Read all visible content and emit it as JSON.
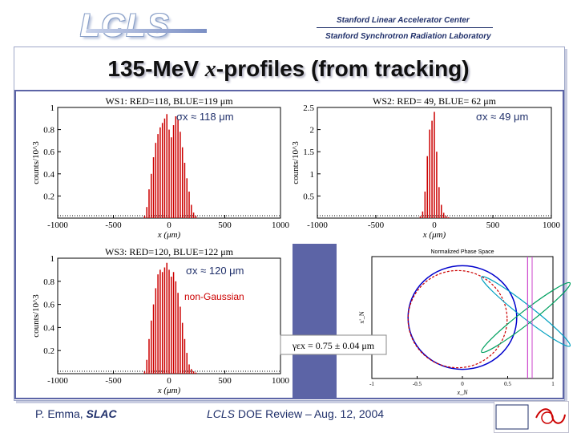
{
  "header": {
    "logo": "LCLS",
    "org_line1": "Stanford Linear Accelerator Center",
    "org_line2": "Stanford Synchrotron Radiation Laboratory"
  },
  "slide_title": {
    "prefix": "135-MeV ",
    "var": "x",
    "suffix": "-profiles (from tracking)"
  },
  "footer": {
    "author": "P. Emma, ",
    "affil": "SLAC",
    "event_prefix": "LCLS",
    "event_suffix": " DOE Review – Aug. 12, 2004"
  },
  "colors": {
    "red": "#cc0000",
    "blue": "#0000cc",
    "band": "#5c64a6",
    "annot": "#1f2f6a"
  },
  "chart_data": [
    {
      "type": "bar",
      "title": "WS1: RED=118, BLUE=119 μm",
      "xlabel": "x (μm)",
      "ylabel": "counts/10^3",
      "xlim": [
        -1000,
        1000
      ],
      "ylim": [
        0,
        1
      ],
      "xticks": [
        -1000,
        -500,
        0,
        500,
        1000
      ],
      "yticks": [
        0.2,
        0.4,
        0.6,
        0.8,
        1
      ],
      "annotation": "σx ≈ 118 μm",
      "x": [
        -220,
        -200,
        -180,
        -160,
        -140,
        -120,
        -100,
        -80,
        -60,
        -40,
        -20,
        0,
        20,
        40,
        60,
        80,
        100,
        120,
        140,
        160,
        180,
        200,
        220,
        240
      ],
      "values": [
        0.02,
        0.1,
        0.26,
        0.4,
        0.55,
        0.68,
        0.76,
        0.82,
        0.86,
        0.9,
        0.94,
        0.8,
        0.73,
        0.84,
        0.92,
        0.89,
        0.78,
        0.64,
        0.5,
        0.36,
        0.24,
        0.12,
        0.05,
        0.02
      ]
    },
    {
      "type": "bar",
      "title": "WS2: RED= 49, BLUE= 62 μm",
      "xlabel": "x (μm)",
      "ylabel": "counts/10^3",
      "xlim": [
        -1000,
        1000
      ],
      "ylim": [
        0,
        2.5
      ],
      "xticks": [
        -1000,
        -500,
        0,
        500,
        1000
      ],
      "yticks": [
        0.5,
        1,
        1.5,
        2,
        2.5
      ],
      "annotation": "σx ≈ 49 μm",
      "x": [
        -120,
        -100,
        -80,
        -60,
        -40,
        -20,
        0,
        20,
        40,
        60,
        80,
        100,
        120
      ],
      "values": [
        0.04,
        0.15,
        0.6,
        1.4,
        2.0,
        2.2,
        2.4,
        1.5,
        0.7,
        0.3,
        0.12,
        0.05,
        0.02
      ]
    },
    {
      "type": "bar",
      "title": "WS3: RED=120, BLUE=122 μm",
      "xlabel": "x (μm)",
      "ylabel": "counts/10^3",
      "xlim": [
        -1000,
        1000
      ],
      "ylim": [
        0,
        1
      ],
      "xticks": [
        -1000,
        -500,
        0,
        500,
        1000
      ],
      "yticks": [
        0.2,
        0.4,
        0.6,
        0.8,
        1
      ],
      "annotation": "σx ≈ 120 μm",
      "annotation2": "non-Gaussian",
      "x": [
        -220,
        -200,
        -180,
        -160,
        -140,
        -120,
        -100,
        -80,
        -60,
        -40,
        -20,
        0,
        20,
        40,
        60,
        80,
        100,
        120,
        140,
        160,
        180,
        200,
        220,
        240
      ],
      "values": [
        0.02,
        0.12,
        0.3,
        0.46,
        0.6,
        0.74,
        0.86,
        0.9,
        0.88,
        0.92,
        0.96,
        0.9,
        0.84,
        0.88,
        0.8,
        0.7,
        0.58,
        0.44,
        0.3,
        0.18,
        0.08,
        0.04,
        0.02,
        0.01
      ]
    },
    {
      "type": "scatter",
      "title": "Normalized Phase Space",
      "xlabel": "x_N",
      "ylabel": "x'_N",
      "xlim": [
        -1,
        1
      ],
      "ylim": [
        -1,
        1
      ],
      "xticks": [
        -1,
        -0.5,
        0,
        0.5,
        1
      ],
      "annotation": "γεx = 0.75 ± 0.04 μm"
    }
  ]
}
